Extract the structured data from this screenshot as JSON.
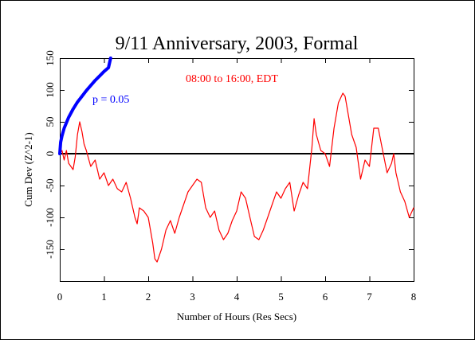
{
  "chart_data": {
    "type": "line",
    "title": "9/11 Anniversary, 2003, Formal",
    "subtitle": "08:00 to 16:00, EDT",
    "xlabel": "Number of Hours (Res Secs)",
    "ylabel": "Cum Dev (Z^2-1)",
    "xlim": [
      0,
      8
    ],
    "ylim": [
      -200,
      150
    ],
    "x_ticks": [
      0,
      1,
      2,
      3,
      4,
      5,
      6,
      7,
      8
    ],
    "y_ticks": [
      -150,
      -100,
      -50,
      0,
      50,
      100,
      150
    ],
    "grid": false,
    "legend": "none",
    "series": [
      {
        "name": "",
        "color": "#ff0000",
        "x": [
          0,
          0.05,
          0.1,
          0.15,
          0.2,
          0.3,
          0.35,
          0.4,
          0.45,
          0.5,
          0.55,
          0.6,
          0.7,
          0.8,
          0.9,
          1.0,
          1.1,
          1.2,
          1.3,
          1.4,
          1.5,
          1.6,
          1.7,
          1.75,
          1.8,
          1.9,
          2.0,
          2.1,
          2.15,
          2.2,
          2.3,
          2.4,
          2.5,
          2.6,
          2.7,
          2.8,
          2.9,
          3.0,
          3.1,
          3.2,
          3.3,
          3.4,
          3.5,
          3.6,
          3.7,
          3.8,
          3.9,
          4.0,
          4.1,
          4.2,
          4.3,
          4.4,
          4.5,
          4.6,
          4.7,
          4.8,
          4.9,
          5.0,
          5.1,
          5.2,
          5.3,
          5.4,
          5.5,
          5.6,
          5.7,
          5.75,
          5.8,
          5.9,
          6.0,
          6.1,
          6.2,
          6.3,
          6.4,
          6.45,
          6.5,
          6.6,
          6.7,
          6.8,
          6.9,
          7.0,
          7.1,
          7.2,
          7.3,
          7.4,
          7.5,
          7.55,
          7.6,
          7.7,
          7.8,
          7.9,
          8.0
        ],
        "y": [
          0,
          5,
          -10,
          5,
          -15,
          -25,
          -5,
          30,
          50,
          35,
          15,
          5,
          -20,
          -10,
          -40,
          -30,
          -50,
          -40,
          -55,
          -60,
          -45,
          -70,
          -100,
          -110,
          -85,
          -90,
          -100,
          -140,
          -165,
          -170,
          -150,
          -120,
          -105,
          -125,
          -100,
          -80,
          -60,
          -50,
          -40,
          -45,
          -85,
          -100,
          -90,
          -120,
          -135,
          -125,
          -105,
          -90,
          -60,
          -70,
          -100,
          -130,
          -135,
          -120,
          -100,
          -80,
          -60,
          -70,
          -55,
          -45,
          -90,
          -65,
          -45,
          -55,
          10,
          55,
          30,
          5,
          0,
          -20,
          40,
          80,
          95,
          90,
          70,
          30,
          10,
          -40,
          -10,
          -20,
          40,
          40,
          5,
          -30,
          -15,
          0,
          -30,
          -60,
          -75,
          -100,
          -85
        ]
      },
      {
        "name": "p = 0.05",
        "color": "#0000ff",
        "x": [
          0,
          0.02,
          0.05,
          0.1,
          0.2,
          0.3,
          0.4,
          0.5,
          0.6,
          0.7,
          0.8,
          0.9,
          1.0,
          1.1,
          1.15
        ],
        "y": [
          0,
          18,
          28,
          40,
          57,
          70,
          81,
          90,
          99,
          107,
          115,
          122,
          129,
          135,
          150
        ]
      }
    ]
  }
}
